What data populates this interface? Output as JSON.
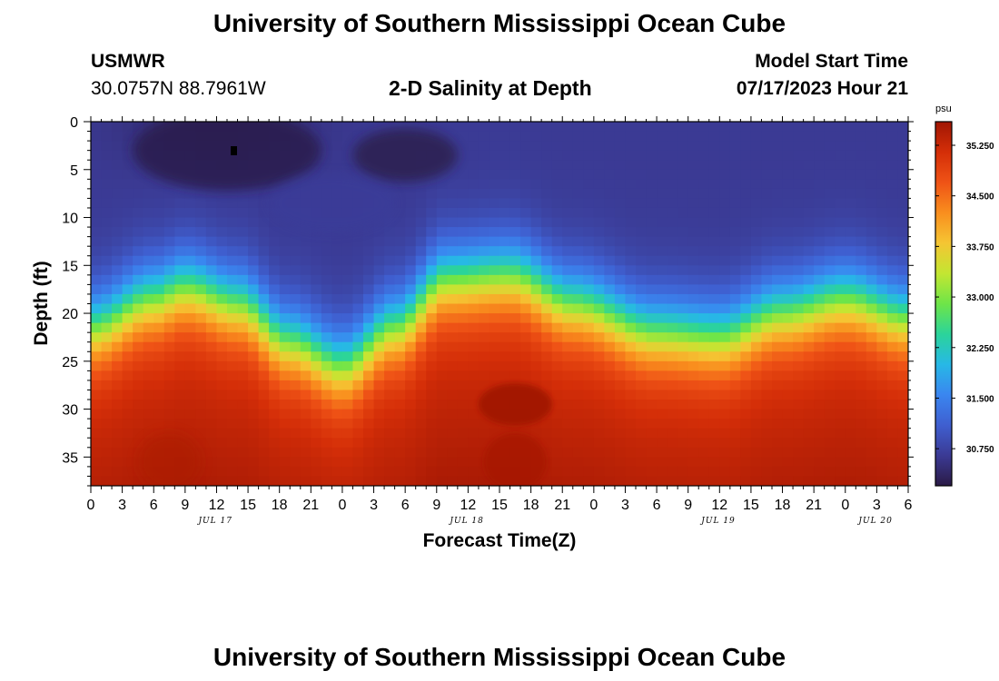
{
  "page_title": "University of Southern Mississippi Ocean Cube",
  "footer_title": "University of Southern Mississippi Ocean Cube",
  "station": {
    "name": "USMWR",
    "coords": "30.0757N  88.7961W"
  },
  "model": {
    "label": "Model Start Time",
    "start": "07/17/2023 Hour 21"
  },
  "chart_data": {
    "type": "heatmap",
    "title": "2-D Salinity at Depth",
    "xlabel": "Forecast Time(Z)",
    "ylabel": "Depth (ft)",
    "x_range_hours": [
      0,
      78
    ],
    "x_ticks": [
      "0",
      "3",
      "6",
      "9",
      "12",
      "15",
      "18",
      "21",
      "0",
      "3",
      "6",
      "9",
      "12",
      "15",
      "18",
      "21",
      "0",
      "3",
      "6",
      "9",
      "12",
      "15",
      "18",
      "21",
      "0",
      "3",
      "6"
    ],
    "date_labels": [
      {
        "text": "JUL 17",
        "hour": 12
      },
      {
        "text": "JUL 18",
        "hour": 36
      },
      {
        "text": "JUL 19",
        "hour": 60
      },
      {
        "text": "JUL 20",
        "hour": 75
      }
    ],
    "ylim": [
      0,
      38
    ],
    "y_ticks": [
      0,
      5,
      10,
      15,
      20,
      25,
      30,
      35
    ],
    "grid": false,
    "colorbar": {
      "unit": "psu",
      "range": [
        30.2,
        35.6
      ],
      "ticks": [
        "35.250",
        "34.500",
        "33.750",
        "33.000",
        "32.250",
        "31.500",
        "30.750"
      ],
      "colors": [
        "#2a1a45",
        "#3b3a94",
        "#3f5fd0",
        "#3a86f0",
        "#27b8e6",
        "#2bd49a",
        "#6ee548",
        "#c3e632",
        "#f5c533",
        "#f98e1e",
        "#ef5316",
        "#d42e08",
        "#a01604"
      ]
    },
    "surface_layer_salinity": {
      "low": 30.3,
      "high": 30.9
    },
    "bottom_layer_salinity": {
      "low": 35.1,
      "high": 35.6
    },
    "halocline_depth_ft": [
      {
        "hour": 0,
        "depth": 21.5
      },
      {
        "hour": 6,
        "depth": 18.5
      },
      {
        "hour": 9,
        "depth": 17.3
      },
      {
        "hour": 14,
        "depth": 19
      },
      {
        "hour": 19,
        "depth": 23
      },
      {
        "hour": 24,
        "depth": 25.5
      },
      {
        "hour": 29,
        "depth": 21.5
      },
      {
        "hour": 34,
        "depth": 16.5
      },
      {
        "hour": 40,
        "depth": 16
      },
      {
        "hour": 46,
        "depth": 19
      },
      {
        "hour": 54,
        "depth": 22
      },
      {
        "hour": 60,
        "depth": 22.5
      },
      {
        "hour": 66,
        "depth": 20
      },
      {
        "hour": 72,
        "depth": 18.5
      },
      {
        "hour": 78,
        "depth": 20.5
      }
    ]
  }
}
